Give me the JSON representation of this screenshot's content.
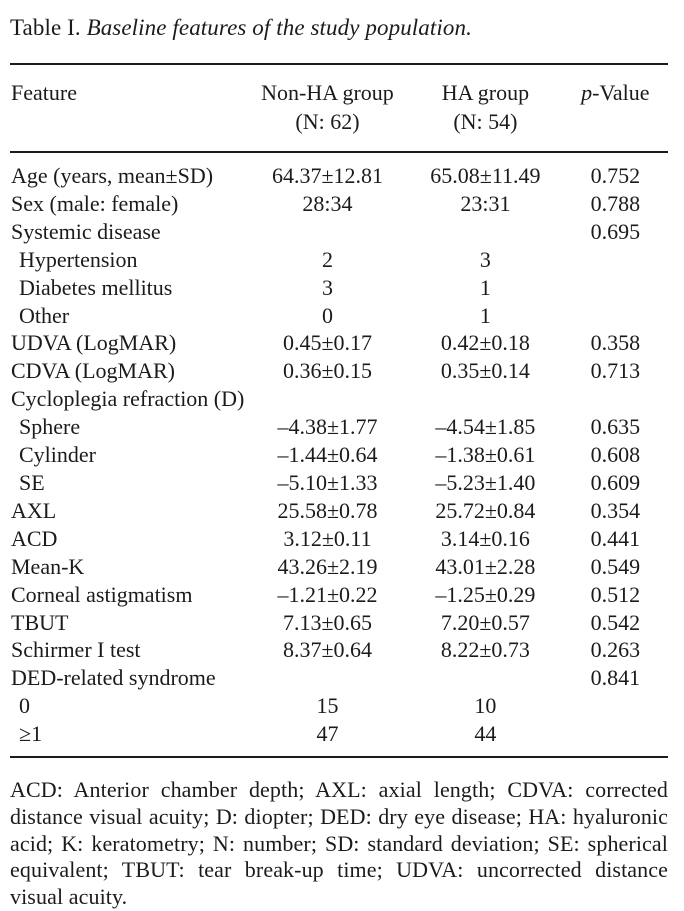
{
  "title": {
    "prefix": "Table I. ",
    "italic": "Baseline features of the study population."
  },
  "table": {
    "header": {
      "feature": "Feature",
      "non_ha_line1": "Non-HA group",
      "non_ha_line2": "(N: 62)",
      "ha_line1": "HA group",
      "ha_line2": "(N: 54)",
      "p_italic": "p",
      "p_rest": "-Value"
    },
    "rows": [
      {
        "label": "Age (years, mean±SD)",
        "indent": false,
        "non_ha": "64.37±12.81",
        "ha": "65.08±11.49",
        "p": "0.752"
      },
      {
        "label": "Sex (male: female)",
        "indent": false,
        "non_ha": "28:34",
        "ha": "23:31",
        "p": "0.788"
      },
      {
        "label": "Systemic disease",
        "indent": false,
        "non_ha": "",
        "ha": "",
        "p": "0.695"
      },
      {
        "label": "Hypertension",
        "indent": true,
        "non_ha": "2",
        "ha": "3",
        "p": ""
      },
      {
        "label": "Diabetes mellitus",
        "indent": true,
        "non_ha": "3",
        "ha": "1",
        "p": ""
      },
      {
        "label": "Other",
        "indent": true,
        "non_ha": "0",
        "ha": "1",
        "p": ""
      },
      {
        "label": "UDVA (LogMAR)",
        "indent": false,
        "non_ha": "0.45±0.17",
        "ha": "0.42±0.18",
        "p": "0.358"
      },
      {
        "label": "CDVA (LogMAR)",
        "indent": false,
        "non_ha": "0.36±0.15",
        "ha": "0.35±0.14",
        "p": "0.713"
      },
      {
        "label": "Cycloplegia refraction (D)",
        "indent": false,
        "non_ha": "",
        "ha": "",
        "p": ""
      },
      {
        "label": "Sphere",
        "indent": true,
        "non_ha": "–4.38±1.77",
        "ha": "–4.54±1.85",
        "p": "0.635"
      },
      {
        "label": "Cylinder",
        "indent": true,
        "non_ha": "–1.44±0.64",
        "ha": "–1.38±0.61",
        "p": "0.608"
      },
      {
        "label": "SE",
        "indent": true,
        "non_ha": "–5.10±1.33",
        "ha": "–5.23±1.40",
        "p": "0.609"
      },
      {
        "label": "AXL",
        "indent": false,
        "non_ha": "25.58±0.78",
        "ha": "25.72±0.84",
        "p": "0.354"
      },
      {
        "label": "ACD",
        "indent": false,
        "non_ha": "3.12±0.11",
        "ha": "3.14±0.16",
        "p": "0.441"
      },
      {
        "label": "Mean-K",
        "indent": false,
        "non_ha": "43.26±2.19",
        "ha": "43.01±2.28",
        "p": "0.549"
      },
      {
        "label": "Corneal astigmatism",
        "indent": false,
        "non_ha": "–1.21±0.22",
        "ha": "–1.25±0.29",
        "p": "0.512"
      },
      {
        "label": "TBUT",
        "indent": false,
        "non_ha": "7.13±0.65",
        "ha": "7.20±0.57",
        "p": "0.542"
      },
      {
        "label": "Schirmer I test",
        "indent": false,
        "non_ha": "8.37±0.64",
        "ha": "8.22±0.73",
        "p": "0.263"
      },
      {
        "label": "DED-related syndrome",
        "indent": false,
        "non_ha": "",
        "ha": "",
        "p": "0.841"
      },
      {
        "label": "0",
        "indent": true,
        "non_ha": "15",
        "ha": "10",
        "p": ""
      },
      {
        "label": "≥1",
        "indent": true,
        "non_ha": "47",
        "ha": "44",
        "p": ""
      }
    ]
  },
  "footnote": "ACD: Anterior chamber depth; AXL: axial length; CDVA: corrected distance visual acuity; D: diopter; DED: dry eye disease; HA: hyaluronic acid; K: keratometry; N: number; SD: standard deviation; SE: spherical equivalent; TBUT: tear break-up time; UDVA: uncorrected distance visual acuity."
}
